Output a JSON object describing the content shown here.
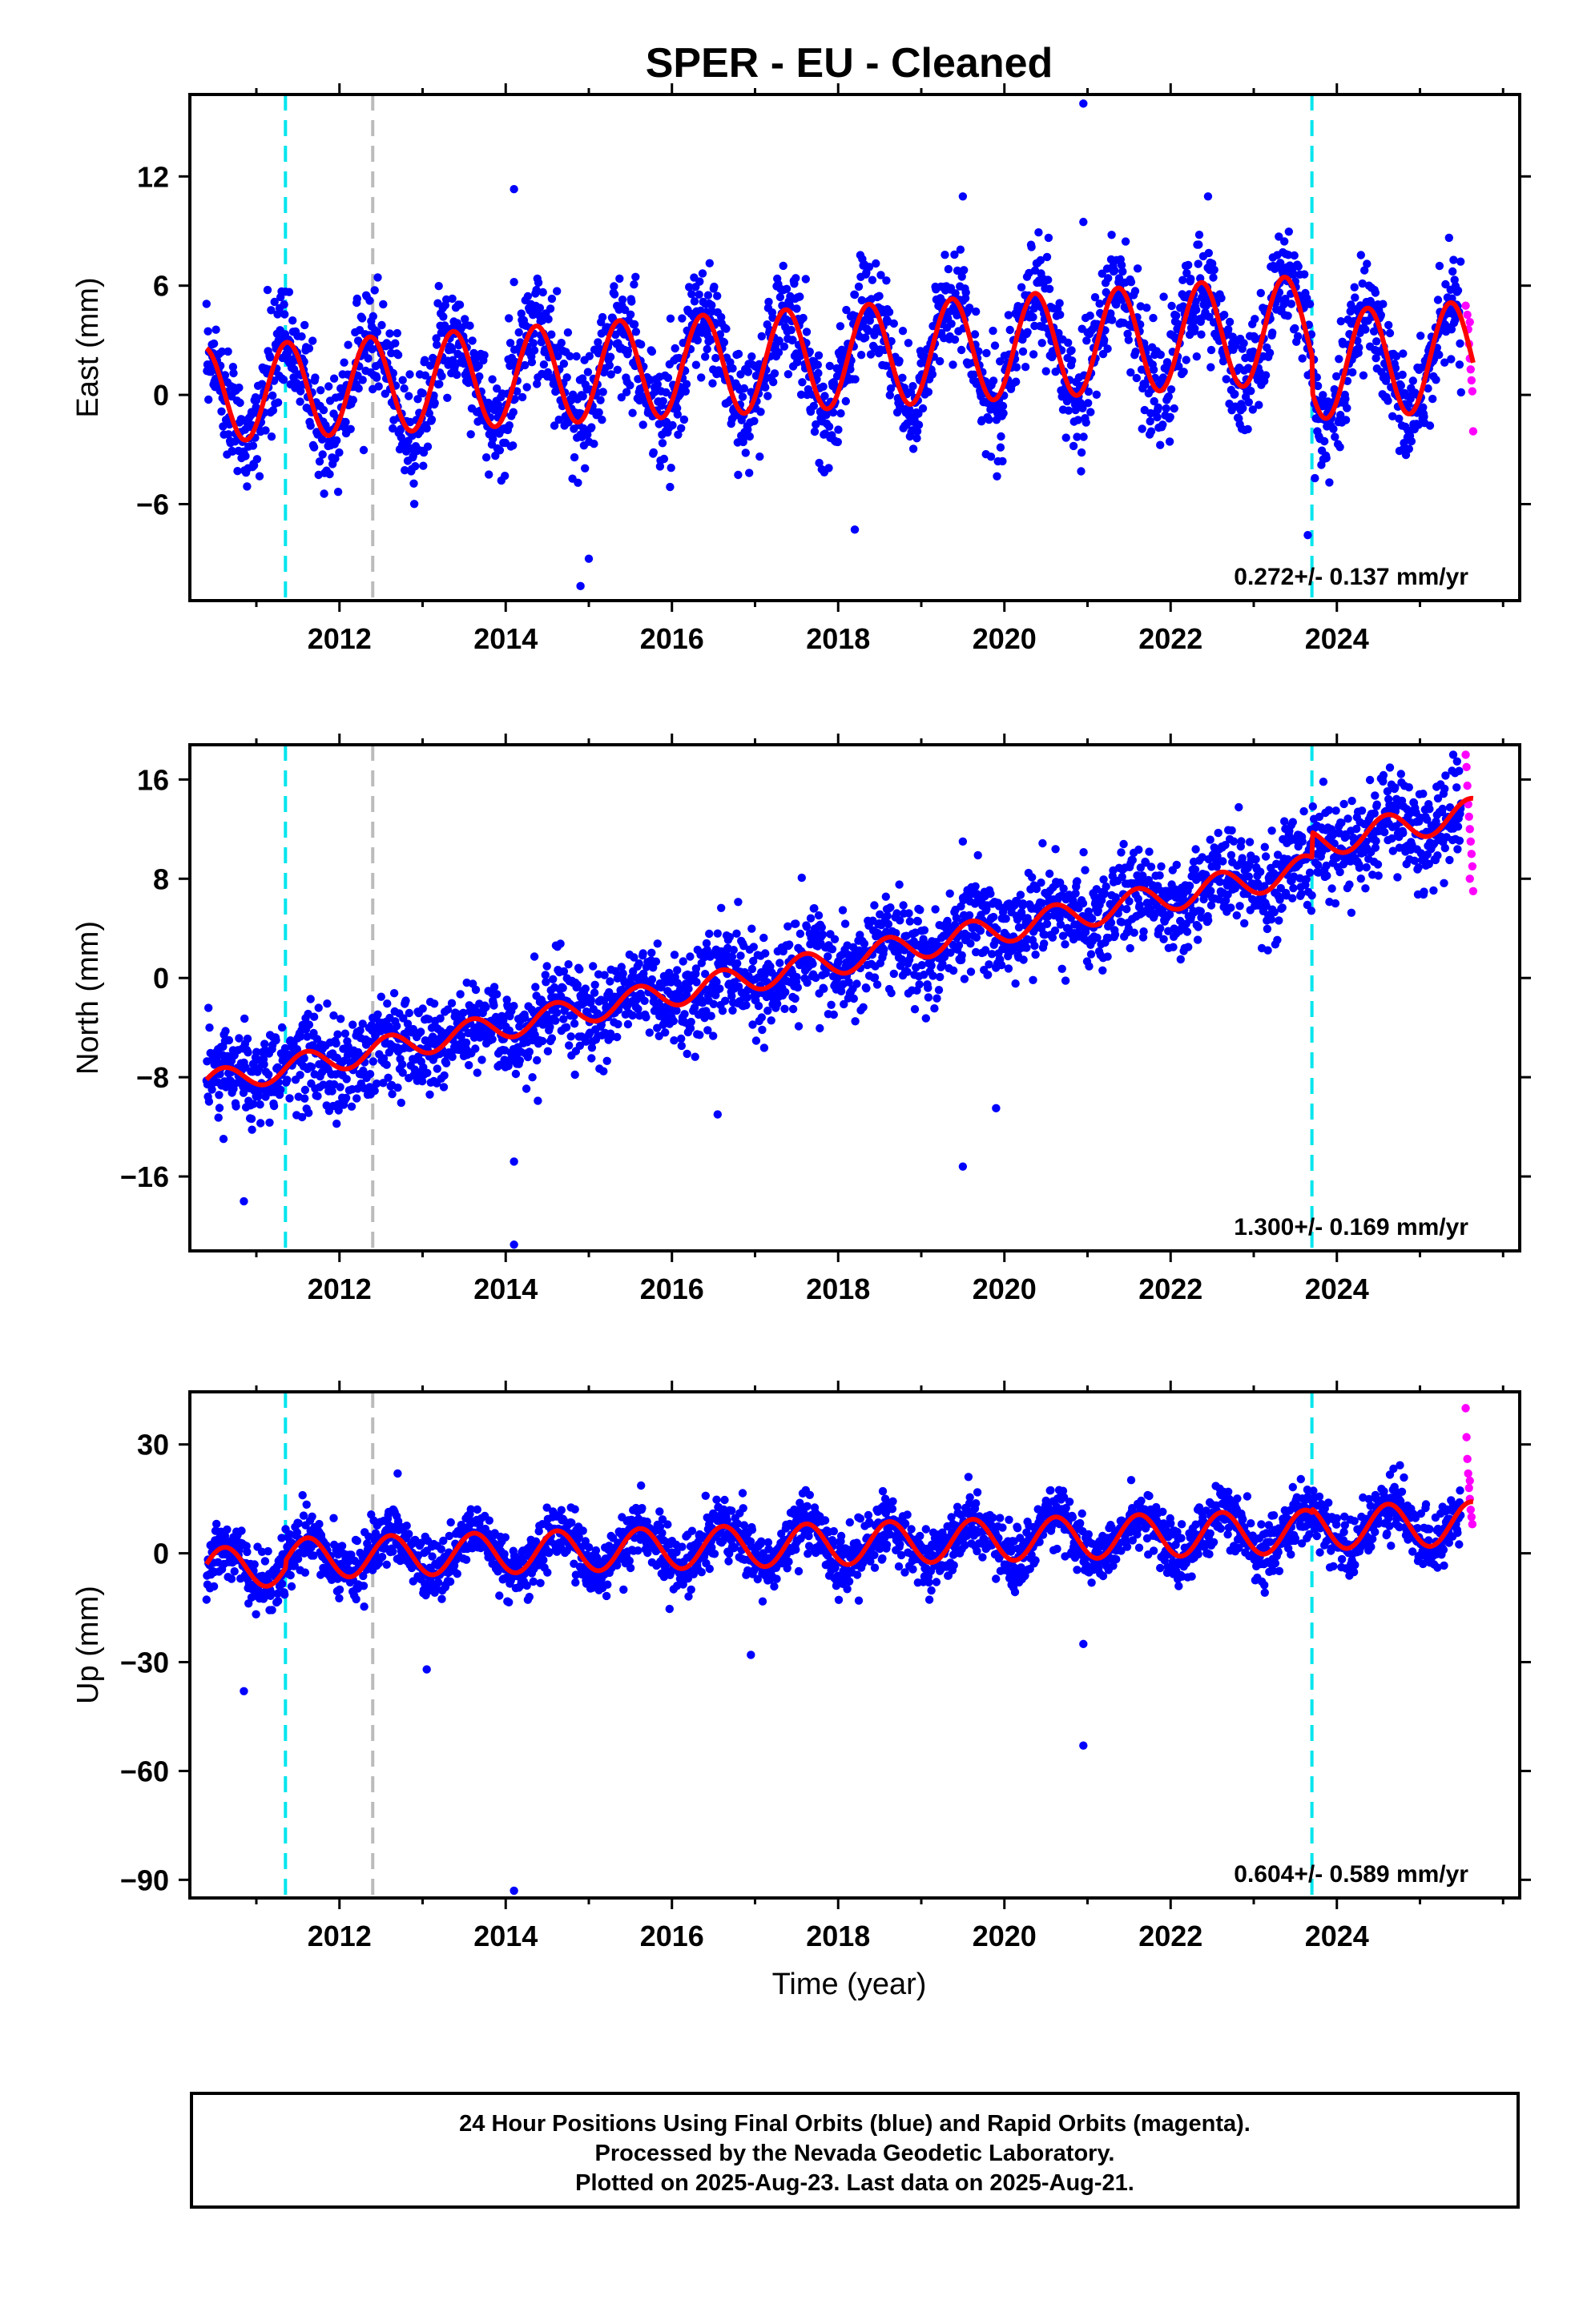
{
  "title": "SPER  - EU - Cleaned",
  "xlabel": "Time (year)",
  "footer": {
    "line1": "24 Hour Positions Using Final Orbits (blue) and Rapid Orbits (magenta).",
    "line2": "Processed by the Nevada Geodetic Laboratory.",
    "line3": "Plotted on 2025-Aug-23. Last data on 2025-Aug-21."
  },
  "colors": {
    "final_orbits": "#0000ff",
    "rapid_orbits": "#ff00ff",
    "model_fit": "#ff0000",
    "equipment_change": "#00e5ee",
    "other_event": "#bbbbbb"
  },
  "chart_data": [
    {
      "type": "scatter",
      "ylabel": "East (mm)",
      "xlim": [
        2010.2,
        2026.2
      ],
      "ylim": [
        -11.3,
        16.5
      ],
      "x_ticks": [
        2012,
        2014,
        2016,
        2018,
        2020,
        2022,
        2024
      ],
      "y_ticks": [
        12,
        6,
        0,
        -6
      ],
      "rate_label": "0.272+/- 0.137 mm/yr",
      "data_start": 2010.4,
      "final_end": 2025.5,
      "rapid_end": 2025.64,
      "trend": {
        "start_value": 0.0,
        "rate_mm_per_yr": 0.272
      },
      "seasonal": {
        "annual_amplitude_start": 2.6,
        "annual_amplitude_end": 3.0,
        "peak_phase": 0.37
      },
      "scatter_sd": 1.5,
      "offsets": [
        {
          "year": 2023.7,
          "offset": -2.0
        }
      ],
      "vertical_lines": [
        {
          "year": 2011.35,
          "kind": "equipment_change"
        },
        {
          "year": 2012.4,
          "kind": "other_event"
        },
        {
          "year": 2023.7,
          "kind": "equipment_change"
        }
      ],
      "outliers": [
        [
          2014.1,
          11.3
        ],
        [
          2014.1,
          6.2
        ],
        [
          2014.9,
          -10.5
        ],
        [
          2020.95,
          16.0
        ],
        [
          2020.95,
          9.5
        ],
        [
          2019.5,
          10.9
        ],
        [
          2022.45,
          10.9
        ],
        [
          2018.2,
          -7.4
        ],
        [
          2023.65,
          -7.7
        ],
        [
          2015.0,
          -9.0
        ]
      ],
      "rapid_points": [
        [
          2025.55,
          4.9
        ],
        [
          2025.57,
          4.4
        ],
        [
          2025.58,
          3.6
        ],
        [
          2025.59,
          2.8
        ],
        [
          2025.6,
          2.0
        ],
        [
          2025.61,
          1.4
        ],
        [
          2025.62,
          0.8
        ],
        [
          2025.63,
          0.2
        ],
        [
          2025.64,
          -2.0
        ],
        [
          2025.6,
          4.0
        ]
      ]
    },
    {
      "type": "scatter",
      "ylabel": "North (mm)",
      "xlim": [
        2010.2,
        2026.2
      ],
      "ylim": [
        -22,
        18.8
      ],
      "x_ticks": [
        2012,
        2014,
        2016,
        2018,
        2020,
        2022,
        2024
      ],
      "y_ticks": [
        16,
        8,
        0,
        -8,
        -16
      ],
      "rate_label": "1.300+/- 0.169 mm/yr",
      "data_start": 2010.4,
      "final_end": 2025.5,
      "rapid_end": 2025.64,
      "trend": {
        "start_value": -8.5,
        "rate_mm_per_yr": 1.3
      },
      "seasonal": {
        "annual_amplitude_start": 1.0,
        "annual_amplitude_end": 1.2,
        "peak_phase": 0.6
      },
      "scatter_sd": 1.9,
      "offsets": [
        {
          "year": 2023.7,
          "offset": 2.0
        }
      ],
      "vertical_lines": [
        {
          "year": 2011.35,
          "kind": "equipment_change"
        },
        {
          "year": 2012.4,
          "kind": "other_event"
        },
        {
          "year": 2023.7,
          "kind": "equipment_change"
        }
      ],
      "outliers": [
        [
          2010.85,
          -18.0
        ],
        [
          2014.1,
          -21.5
        ],
        [
          2014.1,
          -14.8
        ],
        [
          2019.5,
          -15.2
        ],
        [
          2019.9,
          -10.5
        ],
        [
          2019.5,
          11.0
        ],
        [
          2025.4,
          18.0
        ],
        [
          2016.55,
          -11.0
        ]
      ],
      "rapid_points": [
        [
          2025.55,
          18.0
        ],
        [
          2025.56,
          17.0
        ],
        [
          2025.57,
          15.5
        ],
        [
          2025.58,
          14.0
        ],
        [
          2025.59,
          13.0
        ],
        [
          2025.6,
          12.0
        ],
        [
          2025.61,
          11.0
        ],
        [
          2025.62,
          10.0
        ],
        [
          2025.63,
          9.0
        ],
        [
          2025.64,
          7.0
        ],
        [
          2025.6,
          8.0
        ]
      ]
    },
    {
      "type": "scatter",
      "ylabel": "Up (mm)",
      "xlim": [
        2010.2,
        2026.2
      ],
      "ylim": [
        -95,
        44.5
      ],
      "x_ticks": [
        2012,
        2014,
        2016,
        2018,
        2020,
        2022,
        2024
      ],
      "y_ticks": [
        30,
        0,
        -30,
        -60,
        -90
      ],
      "rate_label": "0.604+/- 0.589 mm/yr",
      "data_start": 2010.4,
      "final_end": 2025.5,
      "rapid_end": 2025.64,
      "trend": {
        "start_value": -4.0,
        "rate_mm_per_yr": 0.604
      },
      "seasonal": {
        "annual_amplitude_start": 5.5,
        "annual_amplitude_end": 6.0,
        "peak_phase": 0.62
      },
      "scatter_sd": 4.2,
      "offsets": [
        {
          "year": 2011.35,
          "offset": 2.0
        },
        {
          "year": 2023.7,
          "offset": 1.0
        }
      ],
      "vertical_lines": [
        {
          "year": 2011.35,
          "kind": "equipment_change"
        },
        {
          "year": 2012.4,
          "kind": "other_event"
        },
        {
          "year": 2023.7,
          "kind": "equipment_change"
        }
      ],
      "outliers": [
        [
          2010.85,
          -38.0
        ],
        [
          2014.1,
          -93.0
        ],
        [
          2020.95,
          -53.0
        ],
        [
          2020.95,
          -25.0
        ],
        [
          2013.05,
          -32.0
        ],
        [
          2016.95,
          -28.0
        ],
        [
          2012.7,
          22.0
        ]
      ],
      "rapid_points": [
        [
          2025.55,
          40.0
        ],
        [
          2025.56,
          32.0
        ],
        [
          2025.57,
          26.0
        ],
        [
          2025.58,
          22.0
        ],
        [
          2025.59,
          18.0
        ],
        [
          2025.6,
          15.0
        ],
        [
          2025.61,
          12.0
        ],
        [
          2025.62,
          10.0
        ],
        [
          2025.63,
          8.0
        ],
        [
          2025.6,
          20.0
        ]
      ]
    }
  ]
}
